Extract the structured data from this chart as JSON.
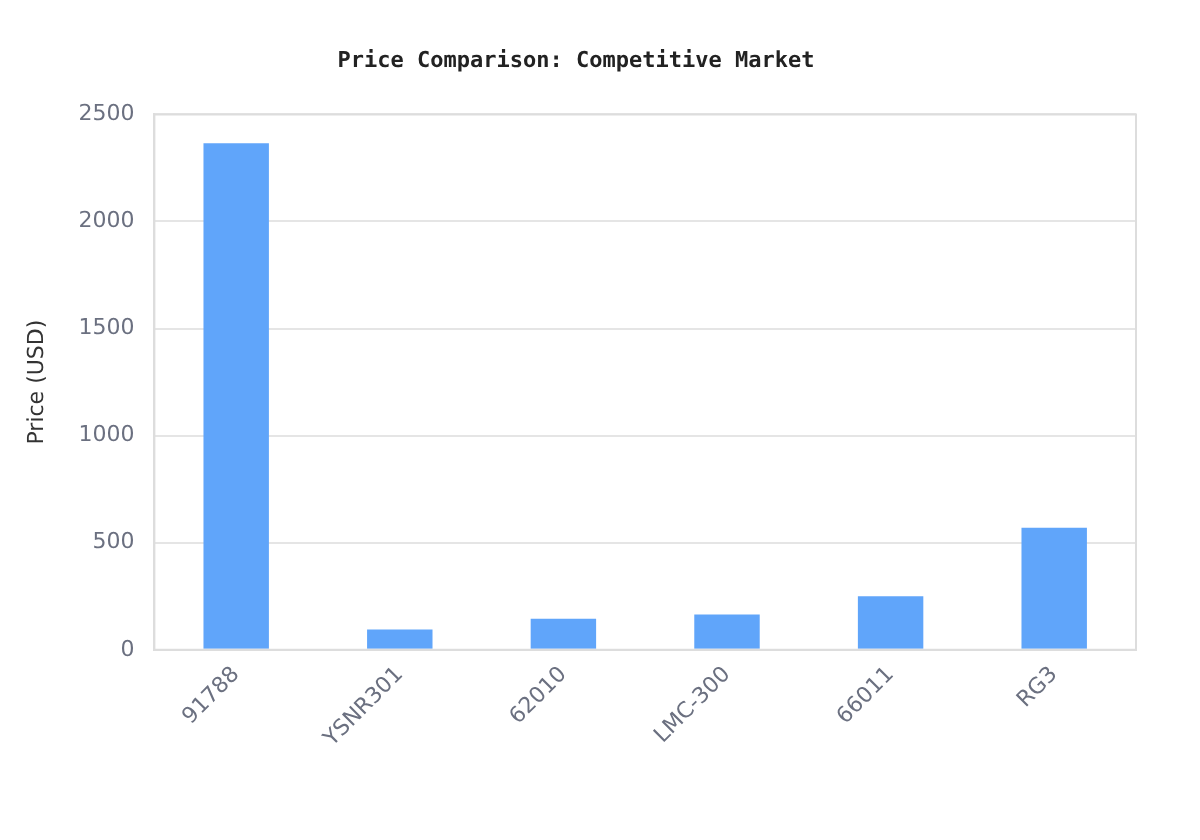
{
  "chart_data": {
    "type": "bar",
    "title": "Price Comparison: Competitive Market",
    "ylabel": "Price (USD)",
    "categories": [
      "91788",
      "YSNR301",
      "62010",
      "LMC-300",
      "66011",
      "RG3"
    ],
    "values": [
      2365,
      95,
      145,
      165,
      250,
      570
    ],
    "color": "#60a5fa",
    "ylim": [
      0,
      2500
    ],
    "yticks": [
      0,
      500,
      1000,
      1500,
      2000,
      2500
    ],
    "grid": "y",
    "legend": false
  }
}
